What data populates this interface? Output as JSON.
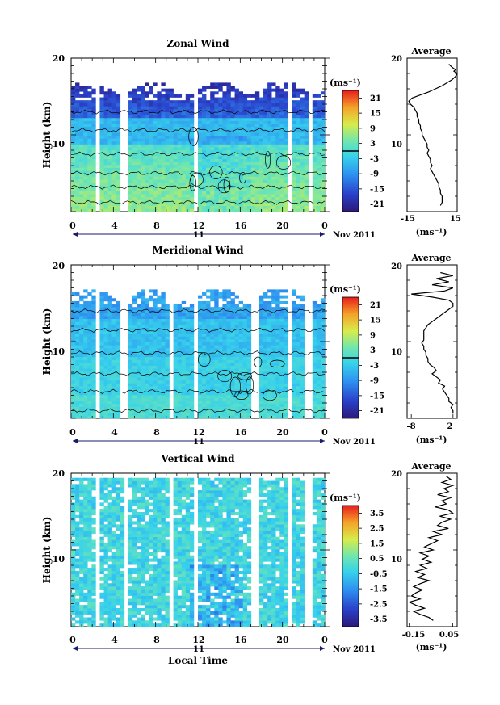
{
  "chart_data": [
    {
      "type": "heatmap",
      "title": "Zonal Wind",
      "ylabel": "Height (km)",
      "ylim": [
        0,
        20
      ],
      "yticks": [
        "20",
        "10"
      ],
      "xlim": [
        0,
        24
      ],
      "xticks": [
        "0",
        "4",
        "8",
        "12",
        "16",
        "20",
        "0"
      ],
      "day_label": "11",
      "date_label": "Nov 2011",
      "colorbar": {
        "unit": "(ms⁻¹)",
        "range": [
          -24,
          24
        ],
        "ticks": [
          "21",
          "15",
          "9",
          "3",
          "-3",
          "-9",
          "-15",
          "-21"
        ],
        "contour_marker": 0
      },
      "profile": {
        "title": "Average",
        "xlabel": "(ms⁻¹)",
        "xticks": [
          "-15",
          "15"
        ],
        "xlim": [
          -15,
          15
        ],
        "yticks": [
          "20",
          "10"
        ],
        "height_km": [
          19.2,
          18.8,
          18.5,
          18.3,
          18.0,
          17.6,
          17.2,
          16.8,
          16.4,
          16.0,
          15.6,
          15.2,
          14.8,
          14.4,
          14.0,
          13.6,
          13.2,
          12.8,
          12.4,
          12.0,
          11.6,
          11.2,
          10.8,
          10.4,
          10.0,
          9.6,
          9.2,
          8.8,
          8.4,
          8.0,
          7.6,
          7.2,
          6.8,
          6.4,
          6.0,
          5.6,
          5.2,
          4.8,
          4.4,
          4.0,
          3.6,
          3.2,
          2.8,
          2.4,
          2.0,
          1.6,
          1.2,
          0.8
        ],
        "value_ms": [
          10,
          12,
          14,
          13,
          15,
          14,
          12,
          9,
          6,
          2,
          -2,
          -7,
          -12,
          -14,
          -13,
          -11,
          -10,
          -9,
          -9,
          -8,
          -8,
          -7,
          -7,
          -6,
          -6,
          -5,
          -4,
          -3,
          -3,
          -2,
          -3,
          -2,
          -1,
          -1,
          0,
          -1,
          0,
          1,
          2,
          3,
          4,
          4,
          5,
          5,
          6,
          6,
          6,
          5
        ]
      }
    },
    {
      "type": "heatmap",
      "title": "Meridional Wind",
      "ylabel": "Height (km)",
      "ylim": [
        0,
        20
      ],
      "yticks": [
        "20",
        "10"
      ],
      "xlim": [
        0,
        24
      ],
      "xticks": [
        "0",
        "4",
        "8",
        "12",
        "16",
        "20",
        "0"
      ],
      "day_label": "11",
      "date_label": "Nov 2011",
      "colorbar": {
        "unit": "(ms⁻¹)",
        "range": [
          -24,
          24
        ],
        "ticks": [
          "21",
          "15",
          "9",
          "3",
          "-3",
          "-9",
          "-15",
          "-21"
        ],
        "contour_marker": 0
      },
      "profile": {
        "title": "Average",
        "xlabel": "(ms⁻¹)",
        "xticks": [
          "-8",
          "2"
        ],
        "xlim": [
          -9,
          3
        ],
        "yticks": [
          "20",
          "10"
        ],
        "height_km": [
          19.0,
          18.6,
          18.2,
          17.8,
          17.4,
          17.0,
          16.6,
          16.2,
          15.8,
          15.4,
          15.0,
          14.6,
          14.2,
          13.8,
          13.4,
          13.0,
          12.6,
          12.2,
          11.8,
          11.4,
          11.0,
          10.6,
          10.2,
          9.8,
          9.4,
          9.0,
          8.6,
          8.2,
          7.8,
          7.4,
          7.0,
          6.6,
          6.2,
          5.8,
          5.4,
          5.0,
          4.6,
          4.2,
          3.8,
          3.4,
          3.0,
          2.6,
          2.2,
          1.8,
          1.4,
          1.0,
          0.6
        ],
        "value_ms": [
          -1,
          2,
          -2,
          1,
          -3,
          2,
          0,
          -8,
          -3,
          1,
          2,
          2,
          1,
          0,
          -1,
          -2,
          -3,
          -4,
          -4.5,
          -5,
          -5,
          -5,
          -5,
          -5.5,
          -5,
          -5,
          -4.5,
          -4.5,
          -4,
          -4,
          -3.5,
          -2.5,
          -2,
          -3,
          -2,
          -1,
          -1.5,
          0,
          -0.5,
          0,
          0.5,
          1,
          1,
          2,
          1.5,
          2,
          2
        ]
      }
    },
    {
      "type": "heatmap",
      "title": "Vertical Wind",
      "ylabel": "Height (km)",
      "xlabel": "Local Time",
      "ylim": [
        0,
        20
      ],
      "yticks": [
        "20",
        "10"
      ],
      "xlim": [
        0,
        24
      ],
      "xticks": [
        "0",
        "4",
        "8",
        "12",
        "16",
        "20",
        "0"
      ],
      "day_label": "11",
      "date_label": "Nov 2011",
      "colorbar": {
        "unit": "(ms⁻¹)",
        "range": [
          -4,
          4
        ],
        "ticks": [
          "3.5",
          "2.5",
          "1.5",
          "0.5",
          "-0.5",
          "-1.5",
          "-2.5",
          "-3.5"
        ]
      },
      "profile": {
        "title": "Average",
        "xlabel": "(ms⁻¹)",
        "xticks": [
          "-0.15",
          "0.05"
        ],
        "xlim": [
          -0.16,
          0.07
        ],
        "yticks": [
          "20",
          "10"
        ],
        "height_km": [
          19.6,
          19.2,
          18.8,
          18.4,
          18.0,
          17.6,
          17.2,
          16.8,
          16.4,
          16.0,
          15.6,
          15.2,
          14.8,
          14.4,
          14.0,
          13.6,
          13.2,
          12.8,
          12.4,
          12.0,
          11.6,
          11.2,
          10.8,
          10.4,
          10.0,
          9.6,
          9.2,
          8.8,
          8.4,
          8.0,
          7.6,
          7.2,
          6.8,
          6.4,
          6.0,
          5.6,
          5.2,
          4.8,
          4.4,
          4.0,
          3.6,
          3.2,
          2.8,
          2.4,
          2.0,
          1.6,
          1.2,
          0.8
        ],
        "value_ms": [
          0.02,
          0.04,
          0.0,
          0.05,
          0.01,
          0.03,
          -0.02,
          0.04,
          0.0,
          0.02,
          -0.03,
          0.03,
          0.05,
          -0.01,
          0.04,
          0.0,
          -0.02,
          0.03,
          -0.04,
          0.0,
          -0.06,
          -0.02,
          -0.05,
          -0.08,
          -0.04,
          -0.1,
          -0.06,
          -0.09,
          -0.05,
          -0.1,
          -0.07,
          -0.12,
          -0.08,
          -0.11,
          -0.06,
          -0.1,
          -0.13,
          -0.09,
          -0.12,
          -0.14,
          -0.1,
          -0.15,
          -0.12,
          -0.08,
          -0.13,
          -0.1,
          -0.06,
          -0.04
        ]
      }
    }
  ]
}
